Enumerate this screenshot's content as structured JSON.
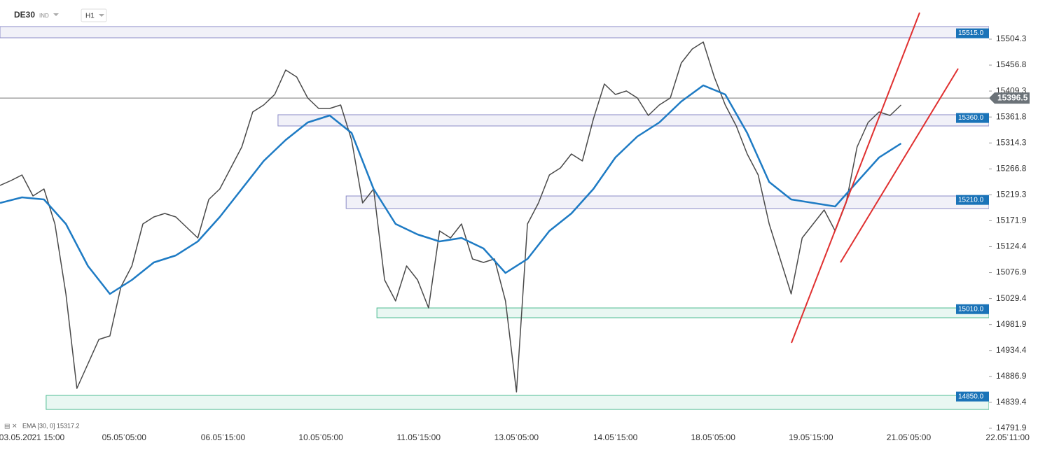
{
  "chart_data": {
    "type": "line",
    "symbol": "DE30",
    "symbol_type": "IND",
    "interval": "H1",
    "indicator_label": "EMA [30, 0] 15317.2",
    "xlim": [
      0,
      90
    ],
    "ylim": [
      14781.6,
      15576.0
    ],
    "yticks": [
      15504.3,
      15456.8,
      15409.3,
      15361.8,
      15314.3,
      15266.8,
      15219.3,
      15171.9,
      15124.4,
      15076.9,
      15029.4,
      14981.9,
      14934.4,
      14886.9,
      14839.4,
      14791.9
    ],
    "xticks": [
      {
        "value": 2.9,
        "label": "03.05.2021 15:00"
      },
      {
        "value": 11.3,
        "label": "05.05 05:00"
      },
      {
        "value": 20.3,
        "label": "06.05 15:00"
      },
      {
        "value": 29.2,
        "label": "10.05 05:00"
      },
      {
        "value": 38.1,
        "label": "11.05 15:00"
      },
      {
        "value": 47.0,
        "label": "13.05 05:00"
      },
      {
        "value": 56.0,
        "label": "14.05 15:00"
      },
      {
        "value": 64.9,
        "label": "18.05 05:00"
      },
      {
        "value": 73.8,
        "label": "19.05 15:00"
      },
      {
        "value": 82.7,
        "label": "21.05 05:00"
      },
      {
        "value": 91.7,
        "label": "22.05 11:00"
      }
    ],
    "series": [
      {
        "name": "DE30",
        "color": "#4a4a4a",
        "x": [
          0,
          1,
          2,
          3,
          4,
          5,
          6,
          7,
          8,
          9,
          10,
          11,
          12,
          13,
          14,
          15,
          16,
          17,
          18,
          19,
          20,
          21,
          22,
          23,
          24,
          25,
          26,
          27,
          28,
          29,
          30,
          31,
          32,
          33,
          34,
          35,
          36,
          37,
          38,
          39,
          40,
          41,
          42,
          43,
          44,
          45,
          46,
          47,
          48,
          49,
          50,
          51,
          52,
          53,
          54,
          55,
          56,
          57,
          58,
          59,
          60,
          61,
          62,
          63,
          64,
          65,
          66,
          67,
          68,
          69,
          70,
          71,
          72,
          73,
          74,
          75,
          76,
          77,
          78,
          79,
          80,
          81,
          82
        ],
        "values": [
          15236.5,
          15245.4,
          15255.7,
          15217.2,
          15230.0,
          15166.0,
          15037.9,
          14864.9,
          14909.7,
          14954.6,
          14961.0,
          15050.7,
          15089.1,
          15166.0,
          15178.8,
          15185.2,
          15178.8,
          15159.6,
          15140.4,
          15210.8,
          15230.0,
          15268.5,
          15306.9,
          15371.0,
          15383.8,
          15403.0,
          15447.9,
          15435.1,
          15396.6,
          15377.4,
          15377.4,
          15383.8,
          15319.7,
          15204.4,
          15230.0,
          15063.5,
          15025.0,
          15089.1,
          15063.5,
          15012.2,
          15153.2,
          15140.4,
          15166.0,
          15101.9,
          15095.5,
          15101.9,
          15025.0,
          14858.5,
          15166.0,
          15204.4,
          15255.7,
          15268.5,
          15294.1,
          15281.3,
          15358.2,
          15422.2,
          15403.0,
          15409.4,
          15396.6,
          15364.6,
          15383.8,
          15396.6,
          15460.7,
          15486.3,
          15499.1,
          15435.1,
          15383.8,
          15345.4,
          15294.1,
          15255.7,
          15166.0,
          15101.9,
          15037.9,
          15140.4,
          15166.0,
          15191.6,
          15153.2,
          15204.4,
          15306.9,
          15351.8,
          15371.0,
          15364.6,
          15383.8
        ]
      },
      {
        "name": "EMA",
        "color": "#1e7bc4",
        "x": [
          0,
          2,
          4,
          6,
          8,
          10,
          12,
          14,
          16,
          18,
          20,
          22,
          24,
          26,
          28,
          30,
          32,
          34,
          36,
          38,
          40,
          42,
          44,
          46,
          48,
          50,
          52,
          54,
          56,
          58,
          60,
          62,
          64,
          66,
          68,
          70,
          72,
          74,
          76,
          78,
          80,
          82
        ],
        "values": [
          15204.4,
          15214.7,
          15210.8,
          15166.0,
          15089.1,
          15037.9,
          15063.5,
          15095.5,
          15108.3,
          15133.9,
          15178.8,
          15230.0,
          15281.3,
          15319.7,
          15351.8,
          15364.6,
          15332.6,
          15230.0,
          15166.0,
          15146.8,
          15133.9,
          15140.4,
          15121.1,
          15076.3,
          15101.9,
          15153.2,
          15185.2,
          15230.0,
          15287.7,
          15326.1,
          15351.8,
          15390.2,
          15419.7,
          15403.0,
          15332.6,
          15242.9,
          15210.8,
          15204.4,
          15198.0,
          15242.9,
          15287.7,
          15313.3
        ]
      }
    ],
    "levels": [
      {
        "value": 15515,
        "label": "15515.0",
        "zone": [
          15506.8,
          15527.3
        ],
        "x_start": 0,
        "color": "#8c8cc8"
      },
      {
        "value": 15360,
        "label": "15360.0",
        "zone": [
          15345.4,
          15365.9
        ],
        "x_start": 25.3,
        "color": "#8c8cc8"
      },
      {
        "value": 15210,
        "label": "15210.0",
        "zone": [
          15194.2,
          15217.2
        ],
        "x_start": 31.5,
        "color": "#8c8cc8"
      },
      {
        "value": 15010,
        "label": "15010.0",
        "zone": [
          14994.3,
          15012.2
        ],
        "x_start": 34.3,
        "color": "#4dbb92"
      },
      {
        "value": 14850,
        "label": "14850.0",
        "zone": [
          14826.4,
          14852.1
        ],
        "x_start": 4.2,
        "color": "#4dbb92"
      }
    ],
    "last_price": 15396.5
  }
}
